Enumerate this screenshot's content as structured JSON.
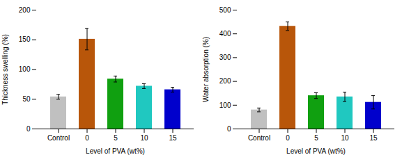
{
  "chart_data": [
    {
      "type": "bar",
      "xlabel": "Level of PVA (wt%)",
      "ylabel": "Thickness swelling (%)",
      "categories": [
        "Control",
        "0",
        "5",
        "10",
        "15"
      ],
      "values": [
        54,
        151,
        84,
        72,
        66
      ],
      "errors": [
        4,
        18,
        5,
        4,
        4
      ],
      "colors": [
        "#c0c0c0",
        "#b8560a",
        "#10a010",
        "#20c8c0",
        "#0000cc"
      ],
      "ylim": [
        0,
        200
      ],
      "yticks": [
        0,
        50,
        100,
        150,
        200
      ]
    },
    {
      "type": "bar",
      "xlabel": "Level of PVA (wt%)",
      "ylabel": "Water absorption (%)",
      "categories": [
        "Control",
        "0",
        "5",
        "10",
        "15"
      ],
      "values": [
        80,
        432,
        140,
        135,
        112
      ],
      "errors": [
        8,
        18,
        12,
        20,
        28
      ],
      "colors": [
        "#c0c0c0",
        "#b8560a",
        "#10a010",
        "#20c8c0",
        "#0000cc"
      ],
      "ylim": [
        0,
        500
      ],
      "yticks": [
        0,
        100,
        200,
        300,
        400,
        500
      ]
    }
  ]
}
